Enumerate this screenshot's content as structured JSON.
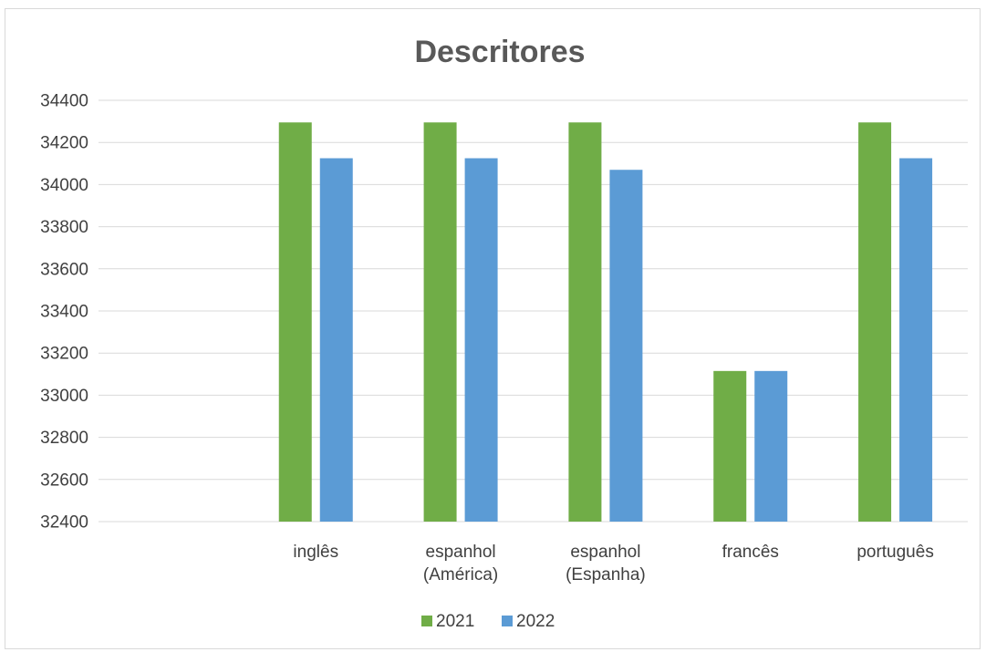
{
  "chart_data": {
    "type": "bar",
    "title": "Descritores",
    "xlabel": "",
    "ylabel": "",
    "categories": [
      [
        "",
        ""
      ],
      [
        "inglês"
      ],
      [
        "espanhol",
        "(América)"
      ],
      [
        "espanhol",
        "(Espanha)"
      ],
      [
        "francês"
      ],
      [
        "português"
      ]
    ],
    "series": [
      {
        "name": "2021",
        "color": "#70ad47",
        "values": [
          null,
          34295,
          34295,
          34295,
          33115,
          34295
        ]
      },
      {
        "name": "2022",
        "color": "#5b9bd5",
        "values": [
          null,
          34125,
          34125,
          34070,
          33115,
          34125
        ]
      }
    ],
    "ylim": [
      32400,
      34400
    ],
    "yticks": [
      32400,
      32600,
      32800,
      33000,
      33200,
      33400,
      33600,
      33800,
      34000,
      34200,
      34400
    ],
    "grid": true,
    "legend": "bottom"
  }
}
